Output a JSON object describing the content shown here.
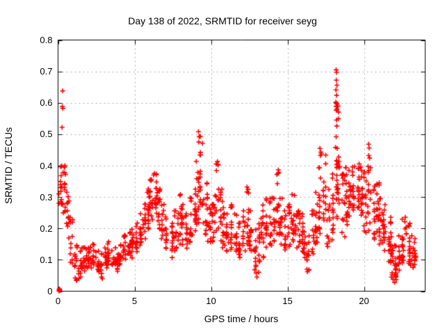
{
  "figure": {
    "background": "#ffffff",
    "border_color": "#000000"
  },
  "chart_data": {
    "type": "scatter",
    "title": "Day 138 of 2022, SRMTID for receiver seyg",
    "xlabel": "GPS time / hours",
    "ylabel": "SRMTID / TECUs",
    "xlim": [
      0,
      24
    ],
    "ylim": [
      0,
      0.8
    ],
    "xticks": [
      0,
      5,
      10,
      15,
      20
    ],
    "xtick_labels": [
      "0",
      "5",
      "10",
      "15",
      "20"
    ],
    "yticks": [
      0,
      0.1,
      0.2,
      0.3,
      0.4,
      0.5,
      0.6,
      0.7,
      0.8
    ],
    "ytick_labels": [
      "0",
      "0.1",
      "0.2",
      "0.3",
      "0.4",
      "0.5",
      "0.6",
      "0.7",
      "0.8"
    ],
    "grid": true,
    "grid_color": "#a8a8a8",
    "legend": "none",
    "series_name": "SRMTID",
    "marker": "plus",
    "marker_color": "#ff0000",
    "seed": 20220518,
    "envelope_binsize_hours": 0.25,
    "envelope_note": "per-bin [t_start, y_min, y_max, n_points] estimated from pixel positions of the red + scatter cloud",
    "envelope": [
      [
        0.0,
        0.27,
        0.4,
        12
      ],
      [
        0.25,
        0.24,
        0.4,
        14
      ],
      [
        0.5,
        0.16,
        0.32,
        12
      ],
      [
        0.75,
        0.08,
        0.24,
        12
      ],
      [
        1.0,
        0.03,
        0.15,
        12
      ],
      [
        1.25,
        0.04,
        0.13,
        12
      ],
      [
        1.5,
        0.06,
        0.14,
        12
      ],
      [
        1.75,
        0.07,
        0.14,
        10
      ],
      [
        2.0,
        0.07,
        0.14,
        12
      ],
      [
        2.25,
        0.08,
        0.15,
        12
      ],
      [
        2.5,
        0.06,
        0.13,
        12
      ],
      [
        2.75,
        0.04,
        0.12,
        12
      ],
      [
        3.0,
        0.07,
        0.14,
        12
      ],
      [
        3.25,
        0.08,
        0.16,
        14
      ],
      [
        3.5,
        0.08,
        0.14,
        12
      ],
      [
        3.75,
        0.06,
        0.12,
        12
      ],
      [
        4.0,
        0.08,
        0.15,
        12
      ],
      [
        4.25,
        0.1,
        0.18,
        14
      ],
      [
        4.5,
        0.11,
        0.19,
        14
      ],
      [
        4.75,
        0.1,
        0.2,
        14
      ],
      [
        5.0,
        0.12,
        0.22,
        14
      ],
      [
        5.25,
        0.14,
        0.25,
        14
      ],
      [
        5.5,
        0.16,
        0.28,
        14
      ],
      [
        5.75,
        0.19,
        0.33,
        16
      ],
      [
        6.0,
        0.22,
        0.36,
        16
      ],
      [
        6.25,
        0.24,
        0.375,
        16
      ],
      [
        6.5,
        0.19,
        0.33,
        14
      ],
      [
        6.75,
        0.16,
        0.28,
        12
      ],
      [
        7.0,
        0.13,
        0.24,
        12
      ],
      [
        7.25,
        0.1,
        0.22,
        12
      ],
      [
        7.5,
        0.12,
        0.26,
        12
      ],
      [
        7.75,
        0.14,
        0.31,
        12
      ],
      [
        8.0,
        0.14,
        0.28,
        14
      ],
      [
        8.25,
        0.13,
        0.25,
        12
      ],
      [
        8.5,
        0.15,
        0.3,
        14
      ],
      [
        8.75,
        0.17,
        0.33,
        14
      ],
      [
        9.0,
        0.2,
        0.42,
        16
      ],
      [
        9.25,
        0.26,
        0.5,
        16
      ],
      [
        9.5,
        0.17,
        0.35,
        14
      ],
      [
        9.75,
        0.15,
        0.3,
        12
      ],
      [
        10.0,
        0.15,
        0.28,
        12
      ],
      [
        10.25,
        0.18,
        0.41,
        14
      ],
      [
        10.5,
        0.15,
        0.33,
        12
      ],
      [
        10.75,
        0.13,
        0.27,
        12
      ],
      [
        11.0,
        0.12,
        0.25,
        12
      ],
      [
        11.25,
        0.13,
        0.28,
        14
      ],
      [
        11.5,
        0.12,
        0.25,
        12
      ],
      [
        11.75,
        0.1,
        0.22,
        12
      ],
      [
        12.0,
        0.12,
        0.26,
        12
      ],
      [
        12.25,
        0.14,
        0.33,
        14
      ],
      [
        12.5,
        0.12,
        0.26,
        12
      ],
      [
        12.75,
        0.06,
        0.2,
        12
      ],
      [
        13.0,
        0.05,
        0.22,
        12
      ],
      [
        13.25,
        0.1,
        0.28,
        14
      ],
      [
        13.5,
        0.13,
        0.3,
        14
      ],
      [
        13.75,
        0.14,
        0.3,
        14
      ],
      [
        14.0,
        0.15,
        0.3,
        14
      ],
      [
        14.25,
        0.17,
        0.385,
        14
      ],
      [
        14.5,
        0.14,
        0.3,
        12
      ],
      [
        14.75,
        0.13,
        0.26,
        12
      ],
      [
        15.0,
        0.14,
        0.28,
        12
      ],
      [
        15.25,
        0.15,
        0.31,
        14
      ],
      [
        15.5,
        0.13,
        0.26,
        12
      ],
      [
        15.75,
        0.12,
        0.25,
        14
      ],
      [
        16.0,
        0.1,
        0.22,
        12
      ],
      [
        16.25,
        0.06,
        0.18,
        12
      ],
      [
        16.5,
        0.11,
        0.26,
        12
      ],
      [
        16.75,
        0.14,
        0.32,
        14
      ],
      [
        17.0,
        0.17,
        0.4,
        14
      ],
      [
        17.25,
        0.22,
        0.44,
        14
      ],
      [
        17.5,
        0.13,
        0.33,
        12
      ],
      [
        17.75,
        0.15,
        0.38,
        14
      ],
      [
        18.0,
        0.22,
        0.42,
        14
      ],
      [
        18.25,
        0.26,
        0.6,
        16
      ],
      [
        18.5,
        0.16,
        0.38,
        14
      ],
      [
        18.75,
        0.2,
        0.4,
        14
      ],
      [
        19.0,
        0.23,
        0.39,
        14
      ],
      [
        19.25,
        0.25,
        0.4,
        16
      ],
      [
        19.5,
        0.26,
        0.41,
        16
      ],
      [
        19.75,
        0.24,
        0.4,
        14
      ],
      [
        20.0,
        0.18,
        0.38,
        14
      ],
      [
        20.25,
        0.18,
        0.4,
        14
      ],
      [
        20.5,
        0.16,
        0.34,
        14
      ],
      [
        20.75,
        0.18,
        0.35,
        16
      ],
      [
        21.0,
        0.14,
        0.3,
        14
      ],
      [
        21.25,
        0.12,
        0.28,
        14
      ],
      [
        21.5,
        0.09,
        0.24,
        14
      ],
      [
        21.75,
        0.05,
        0.19,
        14
      ],
      [
        22.0,
        0.03,
        0.15,
        14
      ],
      [
        22.25,
        0.06,
        0.18,
        14
      ],
      [
        22.5,
        0.09,
        0.24,
        16
      ],
      [
        22.75,
        0.08,
        0.22,
        14
      ],
      [
        23.0,
        0.07,
        0.18,
        12
      ],
      [
        23.25,
        0.08,
        0.17,
        8
      ]
    ],
    "outliers": [
      [
        0.05,
        0.31
      ],
      [
        0.06,
        0.28
      ],
      [
        0.3,
        0.638
      ],
      [
        0.28,
        0.588
      ],
      [
        0.31,
        0.582
      ],
      [
        0.26,
        0.522
      ],
      [
        0.45,
        0.4
      ],
      [
        0.4,
        0.395
      ],
      [
        1.12,
        0.042
      ],
      [
        1.22,
        0.035
      ],
      [
        2.9,
        0.04
      ],
      [
        6.3,
        0.375
      ],
      [
        6.25,
        0.37
      ],
      [
        9.18,
        0.508
      ],
      [
        9.22,
        0.492
      ],
      [
        9.2,
        0.475
      ],
      [
        10.42,
        0.413
      ],
      [
        10.45,
        0.402
      ],
      [
        12.35,
        0.332
      ],
      [
        12.95,
        0.058
      ],
      [
        13.0,
        0.045
      ],
      [
        14.4,
        0.386
      ],
      [
        14.38,
        0.375
      ],
      [
        15.3,
        0.308
      ],
      [
        16.3,
        0.062
      ],
      [
        17.12,
        0.455
      ],
      [
        17.18,
        0.443
      ],
      [
        17.22,
        0.437
      ],
      [
        17.15,
        0.432
      ],
      [
        18.18,
        0.705
      ],
      [
        18.21,
        0.697
      ],
      [
        18.19,
        0.672
      ],
      [
        18.23,
        0.656
      ],
      [
        18.17,
        0.641
      ],
      [
        18.21,
        0.624
      ],
      [
        18.16,
        0.602
      ],
      [
        18.2,
        0.598
      ],
      [
        18.24,
        0.596
      ],
      [
        18.18,
        0.588
      ],
      [
        18.22,
        0.58
      ],
      [
        18.26,
        0.59
      ],
      [
        18.19,
        0.576
      ],
      [
        18.2,
        0.545
      ],
      [
        18.22,
        0.526
      ],
      [
        18.18,
        0.492
      ],
      [
        18.14,
        0.458
      ],
      [
        18.25,
        0.455
      ],
      [
        18.2,
        0.416
      ],
      [
        20.3,
        0.468
      ],
      [
        20.34,
        0.456
      ],
      [
        20.31,
        0.432
      ],
      [
        20.37,
        0.424
      ],
      [
        21.8,
        0.045
      ],
      [
        21.9,
        0.038
      ],
      [
        22.0,
        0.028
      ],
      [
        22.1,
        0.048
      ],
      [
        23.3,
        0.155
      ],
      [
        23.35,
        0.12
      ],
      [
        23.32,
        0.1
      ]
    ],
    "origin_cluster": [
      [
        0.06,
        0.001
      ],
      [
        0.08,
        0.004
      ],
      [
        0.1,
        0.002
      ],
      [
        0.09,
        0.007
      ],
      [
        0.12,
        0.004
      ],
      [
        0.07,
        0.006
      ]
    ]
  }
}
